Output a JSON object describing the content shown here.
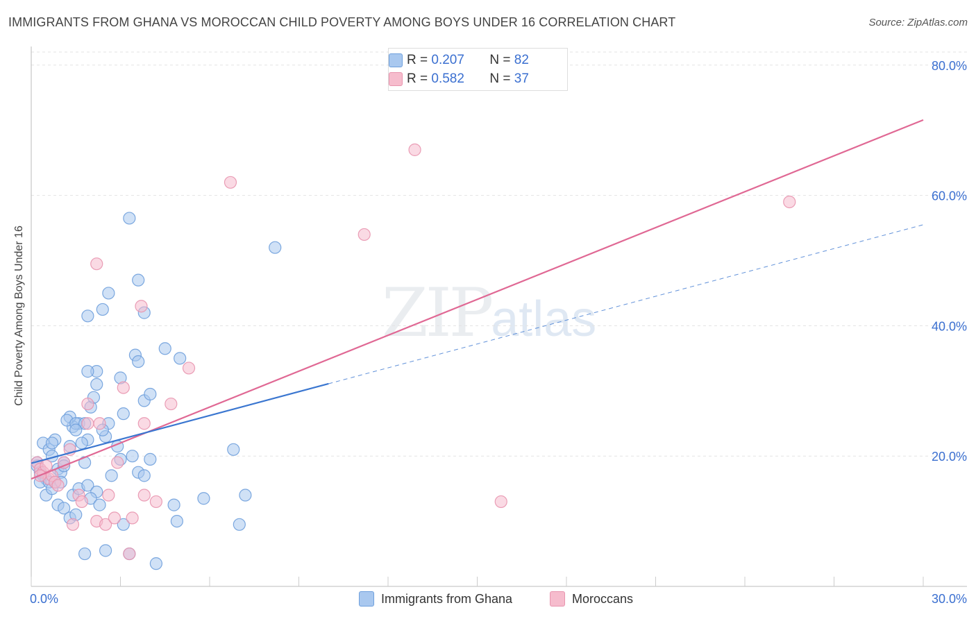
{
  "title": "IMMIGRANTS FROM GHANA VS MOROCCAN CHILD POVERTY AMONG BOYS UNDER 16 CORRELATION CHART",
  "source": "Source: ZipAtlas.com",
  "watermark": {
    "zip": "ZIP",
    "atlas": "atlas"
  },
  "legend": {
    "r_label": "R =",
    "n_label": "N =",
    "rows": [
      {
        "name": "Immigrants from Ghana",
        "r": "0.207",
        "n": "82"
      },
      {
        "name": "Moroccans",
        "r": "0.582",
        "n": "37"
      }
    ]
  },
  "colors": {
    "ghana_fill": "#a9c8ef",
    "ghana_stroke": "#6e9fdc",
    "ghana_line": "#3a76d0",
    "moroccan_fill": "#f6bccd",
    "moroccan_stroke": "#e894ae",
    "moroccan_line": "#e06894",
    "value_blue": "#3a6fd0"
  },
  "chart_data": {
    "type": "scatter",
    "title": "IMMIGRANTS FROM GHANA VS MOROCCAN CHILD POVERTY AMONG BOYS UNDER 16 CORRELATION CHART",
    "xlabel": "",
    "ylabel": "Child Poverty Among Boys Under 16",
    "xlim": [
      0,
      30
    ],
    "ylim": [
      0,
      82
    ],
    "x_tick_labels": [
      "0.0%",
      "30.0%"
    ],
    "y_ticks": [
      20,
      40,
      60,
      80
    ],
    "y_tick_labels": [
      "20.0%",
      "40.0%",
      "60.0%",
      "80.0%"
    ],
    "grid": true,
    "series": [
      {
        "name": "Immigrants from Ghana",
        "points": [
          [
            0.2,
            19
          ],
          [
            0.2,
            18.5
          ],
          [
            0.3,
            17.5
          ],
          [
            0.4,
            17
          ],
          [
            0.5,
            16.5
          ],
          [
            0.3,
            16
          ],
          [
            0.5,
            14
          ],
          [
            0.6,
            16
          ],
          [
            0.7,
            15
          ],
          [
            0.8,
            16
          ],
          [
            0.4,
            22
          ],
          [
            0.6,
            21
          ],
          [
            0.7,
            20
          ],
          [
            0.9,
            18
          ],
          [
            1.0,
            17.5
          ],
          [
            1.1,
            19
          ],
          [
            0.8,
            22.5
          ],
          [
            0.7,
            22
          ],
          [
            1.3,
            21.5
          ],
          [
            1.0,
            16
          ],
          [
            1.1,
            18.5
          ],
          [
            0.9,
            12.5
          ],
          [
            1.1,
            12
          ],
          [
            1.3,
            10.5
          ],
          [
            1.5,
            11
          ],
          [
            1.4,
            14
          ],
          [
            1.6,
            15
          ],
          [
            1.9,
            15.5
          ],
          [
            2.2,
            14.5
          ],
          [
            2.0,
            13.5
          ],
          [
            2.3,
            12.5
          ],
          [
            2.7,
            17
          ],
          [
            3.0,
            19.5
          ],
          [
            3.4,
            20
          ],
          [
            3.6,
            17.5
          ],
          [
            3.8,
            17
          ],
          [
            4.0,
            19.5
          ],
          [
            2.9,
            21.5
          ],
          [
            2.5,
            23
          ],
          [
            2.6,
            25
          ],
          [
            2.4,
            24
          ],
          [
            2.0,
            27.5
          ],
          [
            2.1,
            29
          ],
          [
            2.2,
            31
          ],
          [
            2.2,
            33
          ],
          [
            1.9,
            33
          ],
          [
            1.6,
            25
          ],
          [
            1.4,
            24.5
          ],
          [
            1.3,
            26
          ],
          [
            1.2,
            25.5
          ],
          [
            1.5,
            25
          ],
          [
            1.8,
            25
          ],
          [
            1.5,
            24
          ],
          [
            1.9,
            22.5
          ],
          [
            1.7,
            22
          ],
          [
            1.8,
            19
          ],
          [
            3.1,
            26.5
          ],
          [
            3.0,
            32
          ],
          [
            3.5,
            35.5
          ],
          [
            3.6,
            34.5
          ],
          [
            3.8,
            28.5
          ],
          [
            4.0,
            29.5
          ],
          [
            4.5,
            36.5
          ],
          [
            5.0,
            35
          ],
          [
            3.6,
            47
          ],
          [
            3.8,
            42
          ],
          [
            2.4,
            42.5
          ],
          [
            2.6,
            45
          ],
          [
            1.9,
            41.5
          ],
          [
            3.3,
            56.5
          ],
          [
            8.2,
            52
          ],
          [
            6.8,
            21
          ],
          [
            7.2,
            14
          ],
          [
            7.0,
            9.5
          ],
          [
            5.8,
            13.5
          ],
          [
            4.8,
            12.5
          ],
          [
            4.9,
            10
          ],
          [
            3.1,
            9.5
          ],
          [
            2.5,
            5.5
          ],
          [
            1.8,
            5
          ],
          [
            3.3,
            5
          ],
          [
            4.2,
            3.5
          ]
        ]
      },
      {
        "name": "Moroccans",
        "points": [
          [
            0.2,
            19
          ],
          [
            0.3,
            18
          ],
          [
            0.4,
            17.5
          ],
          [
            0.5,
            18.5
          ],
          [
            0.6,
            16.5
          ],
          [
            0.7,
            17
          ],
          [
            0.8,
            16
          ],
          [
            0.9,
            15.5
          ],
          [
            1.1,
            19
          ],
          [
            1.3,
            21
          ],
          [
            1.6,
            14
          ],
          [
            1.7,
            13
          ],
          [
            1.9,
            28
          ],
          [
            1.9,
            25
          ],
          [
            2.3,
            25
          ],
          [
            2.2,
            10
          ],
          [
            2.5,
            9.5
          ],
          [
            2.6,
            14
          ],
          [
            2.8,
            10.5
          ],
          [
            2.9,
            19
          ],
          [
            3.1,
            30.5
          ],
          [
            3.3,
            5
          ],
          [
            3.4,
            10.5
          ],
          [
            3.7,
            43
          ],
          [
            3.8,
            14
          ],
          [
            3.8,
            25
          ],
          [
            4.2,
            13
          ],
          [
            4.7,
            28
          ],
          [
            5.3,
            33.5
          ],
          [
            6.7,
            62
          ],
          [
            11.2,
            54
          ],
          [
            12.9,
            67
          ],
          [
            15.8,
            13
          ],
          [
            25.5,
            59
          ],
          [
            2.2,
            49.5
          ],
          [
            1.4,
            9.5
          ],
          [
            0.3,
            17
          ]
        ]
      }
    ],
    "trendlines": [
      {
        "series": "Immigrants from Ghana",
        "solid_x": [
          0,
          10.0
        ],
        "dashed_x": [
          10.0,
          30
        ],
        "y_at_x0": 18.9,
        "slope": 1.22
      },
      {
        "series": "Moroccans",
        "solid_x": [
          0,
          30
        ],
        "y_at_x0": 16.5,
        "slope": 1.836
      }
    ]
  }
}
